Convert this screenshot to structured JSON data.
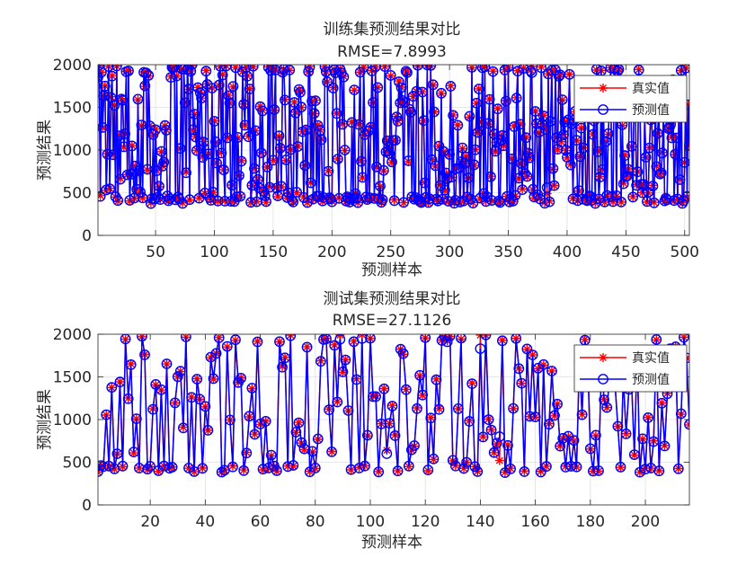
{
  "chart_data": [
    {
      "type": "line",
      "title": "训练集预测结果对比",
      "subtitle": "RMSE=7.8993",
      "xlabel": "预测样本",
      "ylabel": "预测结果",
      "xlim": [
        1,
        504
      ],
      "ylim": [
        0,
        2000
      ],
      "xticks": [
        50,
        100,
        150,
        200,
        250,
        300,
        350,
        400,
        450,
        500
      ],
      "yticks": [
        0,
        500,
        1000,
        1500,
        2000
      ],
      "grid": true,
      "legend_position": "top-right",
      "series_style": [
        {
          "name": "真实值",
          "color": "#ff0000",
          "marker": "star"
        },
        {
          "name": "预测值",
          "color": "#0000ff",
          "marker": "circle"
        }
      ],
      "n_points": 504,
      "value_range": [
        380,
        1990
      ],
      "seed": 7,
      "offsets": [
        {
          "x": 370,
          "y_true": 1980,
          "y_pred": 1905
        },
        {
          "x": 383,
          "y_true": 490,
          "y_pred": 560
        }
      ]
    },
    {
      "type": "line",
      "title": "测试集预测结果对比",
      "subtitle": "RMSE=27.1126",
      "xlabel": "预测样本",
      "ylabel": "预测结果",
      "xlim": [
        1,
        216
      ],
      "ylim": [
        0,
        2000
      ],
      "xticks": [
        20,
        40,
        60,
        80,
        100,
        120,
        140,
        160,
        180,
        200
      ],
      "yticks": [
        0,
        500,
        1000,
        1500,
        2000
      ],
      "grid": true,
      "legend_position": "top-right",
      "series_style": [
        {
          "name": "真实值",
          "color": "#ff0000",
          "marker": "star"
        },
        {
          "name": "预测值",
          "color": "#0000ff",
          "marker": "circle"
        }
      ],
      "n_points": 216,
      "value_range": [
        380,
        1990
      ],
      "seed": 19,
      "offsets": [
        {
          "x": 89,
          "y_true": 1990,
          "y_pred": 1940
        },
        {
          "x": 97,
          "y_true": 1995,
          "y_pred": 1950
        },
        {
          "x": 140,
          "y_true": 1990,
          "y_pred": 1830
        },
        {
          "x": 147,
          "y_true": 520,
          "y_pred": 800
        },
        {
          "x": 106,
          "y_true": 640,
          "y_pred": 600
        }
      ]
    }
  ]
}
